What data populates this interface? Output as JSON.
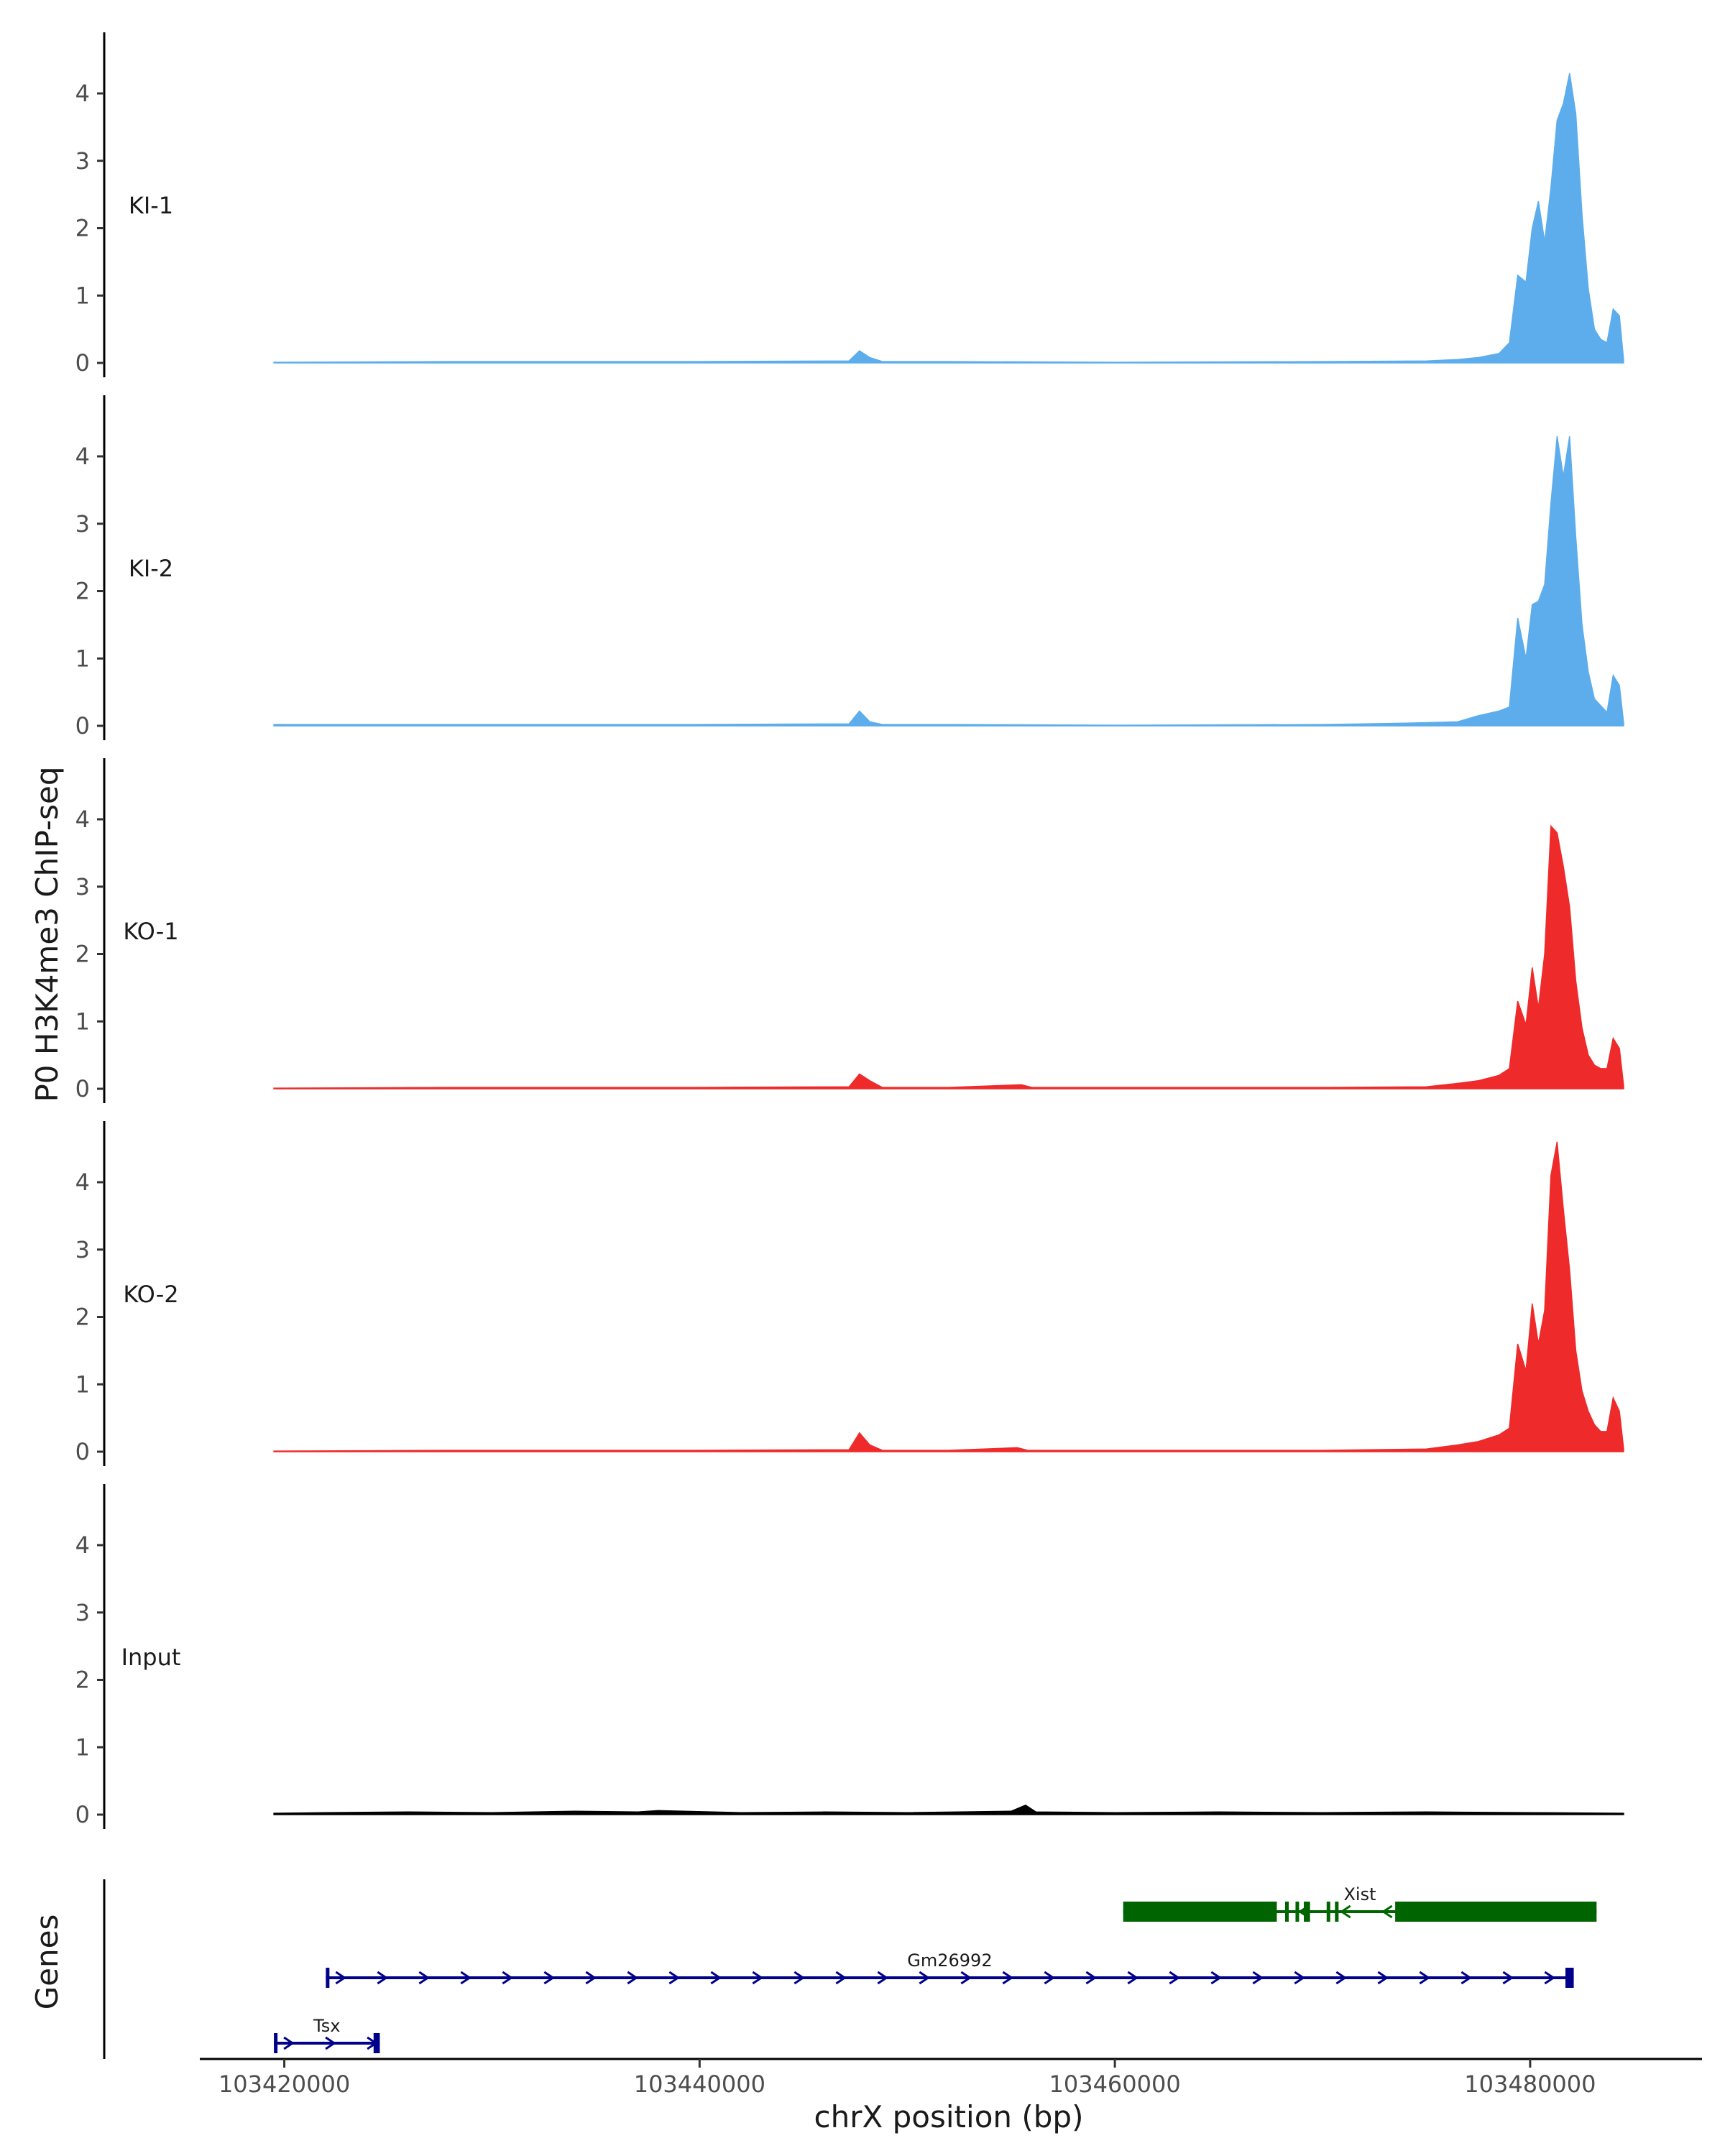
{
  "chart_data": {
    "type": "area",
    "ylabel": "P0 H3K4me3 ChIP-seq",
    "xlabel": "chrX position (bp)",
    "genes_label": "Genes",
    "xlim": [
      103416000,
      103488000
    ],
    "ylim": [
      0,
      4.8
    ],
    "x_ticks": [
      103420000,
      103440000,
      103460000,
      103480000
    ],
    "x_tick_labels": [
      "103420000",
      "103440000",
      "103460000",
      "103480000"
    ],
    "y_ticks": [
      0,
      1,
      2,
      3,
      4
    ],
    "y_tick_labels": [
      "0",
      "1",
      "2",
      "3",
      "4"
    ],
    "series": [
      {
        "name": "KI-1",
        "color": "#5DADEC",
        "x": [
          103419500,
          103428000,
          103440000,
          103447200,
          103447700,
          103448200,
          103448800,
          103452000,
          103460000,
          103470000,
          103475000,
          103476500,
          103477500,
          103478500,
          103479000,
          103479400,
          103479800,
          103480100,
          103480400,
          103480700,
          103481000,
          103481300,
          103481600,
          103481900,
          103482200,
          103482500,
          103482800,
          103483100,
          103483400,
          103483700,
          103484000,
          103484300,
          103484500
        ],
        "y": [
          0.01,
          0.02,
          0.02,
          0.03,
          0.18,
          0.08,
          0.02,
          0.02,
          0.01,
          0.02,
          0.03,
          0.05,
          0.08,
          0.14,
          0.3,
          1.3,
          1.2,
          2.0,
          2.4,
          1.8,
          2.6,
          3.6,
          3.85,
          4.3,
          3.7,
          2.2,
          1.1,
          0.5,
          0.35,
          0.3,
          0.8,
          0.7,
          0.05
        ]
      },
      {
        "name": "KI-2",
        "color": "#5DADEC",
        "x": [
          103419500,
          103428000,
          103440000,
          103447200,
          103447700,
          103448200,
          103448800,
          103452000,
          103460000,
          103470000,
          103474000,
          103476500,
          103477500,
          103478500,
          103479000,
          103479400,
          103479800,
          103480100,
          103480400,
          103480700,
          103481000,
          103481300,
          103481600,
          103481900,
          103482200,
          103482500,
          103482800,
          103483100,
          103483400,
          103483700,
          103484000,
          103484300,
          103484500
        ],
        "y": [
          0.02,
          0.02,
          0.02,
          0.03,
          0.22,
          0.06,
          0.02,
          0.02,
          0.01,
          0.02,
          0.04,
          0.06,
          0.15,
          0.22,
          0.28,
          1.6,
          1.0,
          1.8,
          1.85,
          2.1,
          3.3,
          4.3,
          3.7,
          4.3,
          2.8,
          1.5,
          0.8,
          0.4,
          0.3,
          0.2,
          0.75,
          0.6,
          0.05
        ]
      },
      {
        "name": "KO-1",
        "color": "#EE2A2A",
        "x": [
          103419500,
          103428000,
          103440000,
          103447200,
          103447700,
          103448200,
          103448800,
          103452000,
          103455500,
          103456000,
          103460000,
          103470000,
          103475000,
          103476500,
          103477500,
          103478500,
          103479000,
          103479400,
          103479800,
          103480100,
          103480400,
          103480700,
          103481000,
          103481300,
          103481600,
          103481900,
          103482200,
          103482500,
          103482800,
          103483100,
          103483400,
          103483700,
          103484000,
          103484300,
          103484500
        ],
        "y": [
          0.01,
          0.02,
          0.02,
          0.03,
          0.22,
          0.12,
          0.02,
          0.02,
          0.06,
          0.02,
          0.02,
          0.02,
          0.03,
          0.08,
          0.12,
          0.2,
          0.3,
          1.3,
          0.95,
          1.8,
          1.2,
          2.0,
          3.9,
          3.8,
          3.3,
          2.7,
          1.6,
          0.9,
          0.5,
          0.35,
          0.3,
          0.3,
          0.75,
          0.6,
          0.05
        ]
      },
      {
        "name": "KO-2",
        "color": "#EE2A2A",
        "x": [
          103419500,
          103428000,
          103440000,
          103447200,
          103447700,
          103448200,
          103448800,
          103452000,
          103455300,
          103455800,
          103460000,
          103470000,
          103475000,
          103476500,
          103477500,
          103478500,
          103479000,
          103479400,
          103479800,
          103480100,
          103480400,
          103480700,
          103481000,
          103481300,
          103481600,
          103481900,
          103482200,
          103482500,
          103482800,
          103483100,
          103483400,
          103483700,
          103484000,
          103484300,
          103484500
        ],
        "y": [
          0.01,
          0.02,
          0.02,
          0.03,
          0.28,
          0.1,
          0.02,
          0.02,
          0.06,
          0.02,
          0.02,
          0.02,
          0.04,
          0.1,
          0.15,
          0.25,
          0.35,
          1.6,
          1.2,
          2.2,
          1.6,
          2.1,
          4.1,
          4.6,
          3.6,
          2.7,
          1.5,
          0.9,
          0.6,
          0.4,
          0.3,
          0.3,
          0.8,
          0.6,
          0.05
        ]
      },
      {
        "name": "Input",
        "color": "#000000",
        "x": [
          103419500,
          103422000,
          103426000,
          103430000,
          103434000,
          103437000,
          103438000,
          103442000,
          103446000,
          103450000,
          103455000,
          103455700,
          103456200,
          103460000,
          103465000,
          103470000,
          103475000,
          103480000,
          103484500
        ],
        "y": [
          0.02,
          0.03,
          0.04,
          0.03,
          0.05,
          0.04,
          0.06,
          0.03,
          0.04,
          0.03,
          0.05,
          0.14,
          0.04,
          0.03,
          0.04,
          0.03,
          0.04,
          0.03,
          0.02
        ]
      }
    ],
    "genes": [
      {
        "name": "Xist",
        "strand": "-",
        "color": "#006400",
        "start": 103460400,
        "end": 103483200,
        "exons": [
          [
            103460400,
            103467800
          ],
          [
            103468200,
            103468300
          ],
          [
            103468700,
            103468800
          ],
          [
            103469100,
            103469400
          ],
          [
            103470200,
            103470300
          ],
          [
            103470600,
            103470700
          ],
          [
            103473500,
            103483200
          ]
        ]
      },
      {
        "name": "Gm26992",
        "strand": "+",
        "color": "#00008B",
        "start": 103422000,
        "end": 103482100,
        "exons": [
          [
            103422000,
            103422100
          ],
          [
            103481700,
            103482100
          ]
        ]
      },
      {
        "name": "Tsx",
        "strand": "+",
        "color": "#00008B",
        "start": 103419500,
        "end": 103424600,
        "exons": [
          [
            103419500,
            103419600
          ],
          [
            103424300,
            103424600
          ]
        ]
      }
    ]
  }
}
